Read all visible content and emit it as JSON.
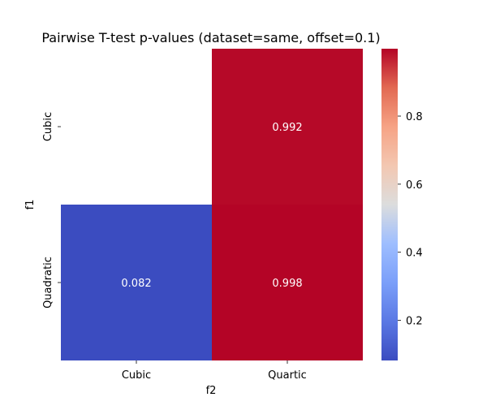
{
  "chart_data": {
    "type": "heatmap",
    "title": "Pairwise T-test p-values (dataset=same, offset=0.1)",
    "xlabel": "f2",
    "ylabel": "f1",
    "x_categories": [
      "Cubic",
      "Quartic"
    ],
    "y_categories": [
      "Cubic",
      "Quadratic"
    ],
    "values": [
      [
        null,
        0.992
      ],
      [
        0.082,
        0.998
      ]
    ],
    "cell_labels": [
      [
        null,
        "0.992"
      ],
      [
        0.082,
        "0.998"
      ]
    ],
    "colormap": "coolwarm",
    "colorbar": {
      "vmin": 0.082,
      "vmax": 0.998,
      "ticks": [
        0.2,
        0.4,
        0.6,
        0.8
      ],
      "tick_labels": [
        "0.2",
        "0.4",
        "0.6",
        "0.8"
      ]
    }
  },
  "colors": {
    "low": "#3b4cc0",
    "mid": "#dddddd",
    "high": "#b40426",
    "text": "#000000",
    "cell_text": "#ffffff"
  }
}
